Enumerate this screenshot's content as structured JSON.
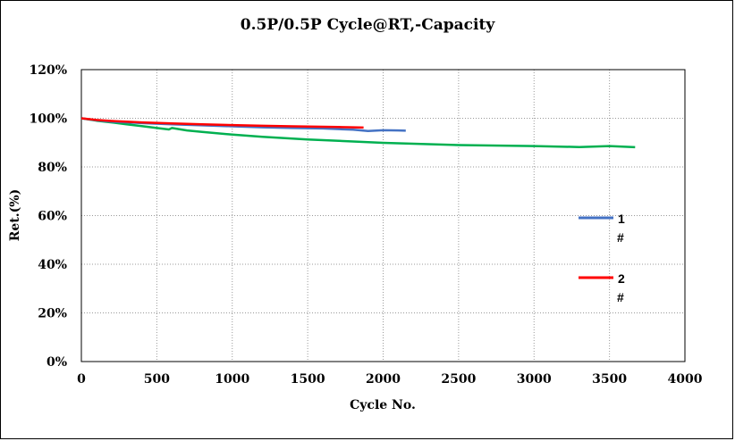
{
  "chart_data": {
    "type": "line",
    "title": "0.5P/0.5P Cycle@RT,-Capacity",
    "xlabel": "Cycle No.",
    "ylabel": "Ret.(%)",
    "xlim": [
      0,
      4000
    ],
    "ylim": [
      0,
      120
    ],
    "x_ticks": [
      "0",
      "500",
      "1000",
      "1500",
      "2000",
      "2500",
      "3000",
      "3500",
      "4000"
    ],
    "y_ticks": [
      "0%",
      "20%",
      "40%",
      "60%",
      "80%",
      "100%",
      "120%"
    ],
    "grid": true,
    "legend_position": "right",
    "series": [
      {
        "name_line1": "1",
        "name_line2": "#",
        "color": "#4472C4",
        "x": [
          0,
          100,
          200,
          400,
          600,
          800,
          1000,
          1200,
          1400,
          1600,
          1800,
          1900,
          2000,
          2100,
          2150
        ],
        "y": [
          100,
          99.2,
          98.6,
          98.0,
          97.5,
          97.1,
          96.7,
          96.3,
          96.0,
          95.8,
          95.3,
          94.8,
          95.1,
          95.0,
          94.9
        ]
      },
      {
        "name_line1": "2",
        "name_line2": "#",
        "color": "#FF0000",
        "x": [
          0,
          100,
          200,
          400,
          600,
          800,
          1000,
          1200,
          1400,
          1600,
          1700,
          1800,
          1870
        ],
        "y": [
          100,
          99.3,
          98.9,
          98.3,
          97.9,
          97.5,
          97.2,
          96.9,
          96.7,
          96.5,
          96.4,
          96.3,
          96.2
        ]
      },
      {
        "color": "#00B050",
        "x": [
          0,
          100,
          200,
          300,
          400,
          500,
          580,
          600,
          700,
          800,
          1000,
          1200,
          1500,
          2000,
          2500,
          3000,
          3300,
          3500,
          3670
        ],
        "y": [
          100,
          99.0,
          98.3,
          97.5,
          96.8,
          96.0,
          95.4,
          96.0,
          95.0,
          94.4,
          93.3,
          92.4,
          91.3,
          89.9,
          89.0,
          88.6,
          88.2,
          88.6,
          88.1
        ]
      }
    ]
  }
}
